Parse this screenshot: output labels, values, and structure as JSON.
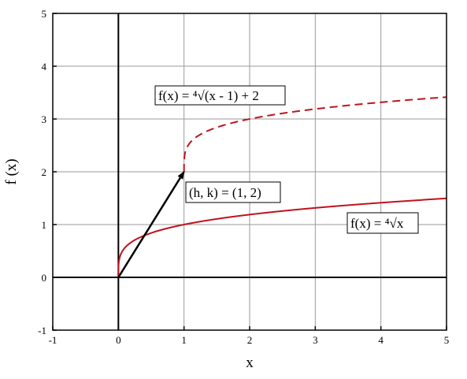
{
  "chart_data": {
    "type": "line",
    "xlabel": "x",
    "ylabel": "f (x)",
    "xlim": [
      -1,
      5
    ],
    "ylim": [
      -1,
      5
    ],
    "x_ticks": [
      "-1",
      "0",
      "1",
      "2",
      "3",
      "4",
      "5"
    ],
    "y_ticks": [
      "-1",
      "0",
      "1",
      "2",
      "3",
      "4",
      "5"
    ],
    "grid": true,
    "series": [
      {
        "label": "f(x) = ⁴√x",
        "function": "fourth-root",
        "shift": [
          0,
          0
        ],
        "style": "solid",
        "color": "#c0141e",
        "points": [
          [
            0,
            0
          ],
          [
            0.0625,
            0.5
          ],
          [
            0.2,
            0.67
          ],
          [
            0.5,
            0.84
          ],
          [
            1,
            1
          ],
          [
            2,
            1.19
          ],
          [
            3,
            1.32
          ],
          [
            4,
            1.41
          ],
          [
            5,
            1.5
          ]
        ]
      },
      {
        "label": "f(x) = ⁴√(x - 1) + 2",
        "function": "fourth-root",
        "shift": [
          1,
          2
        ],
        "style": "dashed",
        "color": "#c0141e",
        "points": [
          [
            1,
            2
          ],
          [
            1.0625,
            2.5
          ],
          [
            1.2,
            2.67
          ],
          [
            1.5,
            2.84
          ],
          [
            2,
            3
          ],
          [
            3,
            3.19
          ],
          [
            4,
            3.32
          ],
          [
            5,
            3.41
          ]
        ]
      }
    ],
    "arrow": {
      "from": [
        0,
        0
      ],
      "to": [
        1,
        2
      ],
      "color": "#000000"
    },
    "annotations": [
      "f(x) = ⁴√(x - 1) + 2",
      "(h, k) = (1, 2)",
      "f(x) = ⁴√x"
    ]
  }
}
